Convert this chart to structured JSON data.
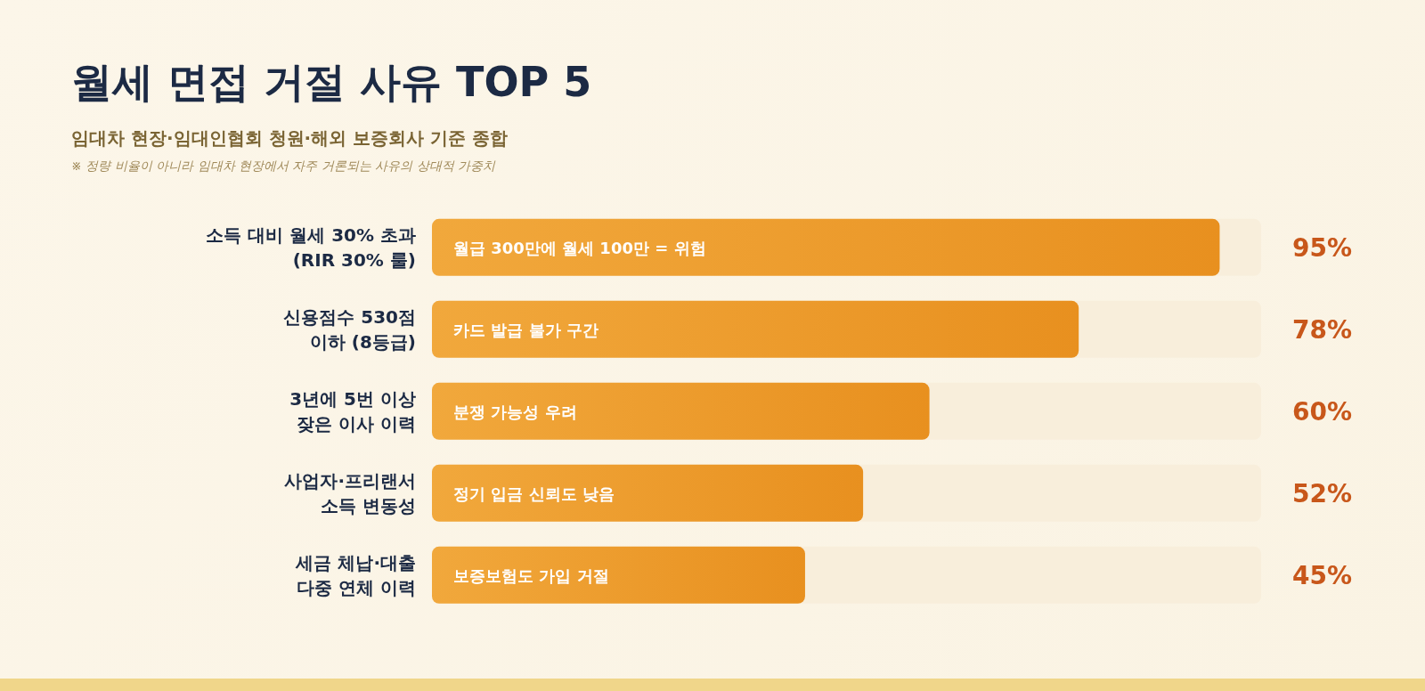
{
  "chart_data": {
    "type": "bar",
    "orientation": "horizontal",
    "title": "월세 면접 거절 사유 TOP 5",
    "subtitle": "임대차 현장·임대인협회 청원·해외 보증회사 기준 종합",
    "annotations": [
      "※ 정량 비율이 아니라 임대차 현장에서 자주 거론되는 사유의 상대적 가중치",
      "월급 300만에 월세 100만 = 위험",
      "카드 발급 불가 구간",
      "분쟁 가능성 우려",
      "정기 입금 신뢰도 낮음",
      "보증보험도 가입 거절"
    ],
    "categories": [
      "소득 대비 월세 30% 초과 (RIR 30% 룰)",
      "신용점수 530점 이하 (8등급)",
      "3년에 5번 이상 잦은 이사 이력",
      "사업자·프리랜서 소득 변동성",
      "세금 체납·대출 다중 연체 이력"
    ],
    "values": [
      95,
      78,
      60,
      52,
      45
    ],
    "value_labels": [
      "95%",
      "78%",
      "60%",
      "52%",
      "45%"
    ],
    "color": "#e8901f",
    "xlim": [
      0,
      100
    ],
    "tick_labels": "y"
  }
}
